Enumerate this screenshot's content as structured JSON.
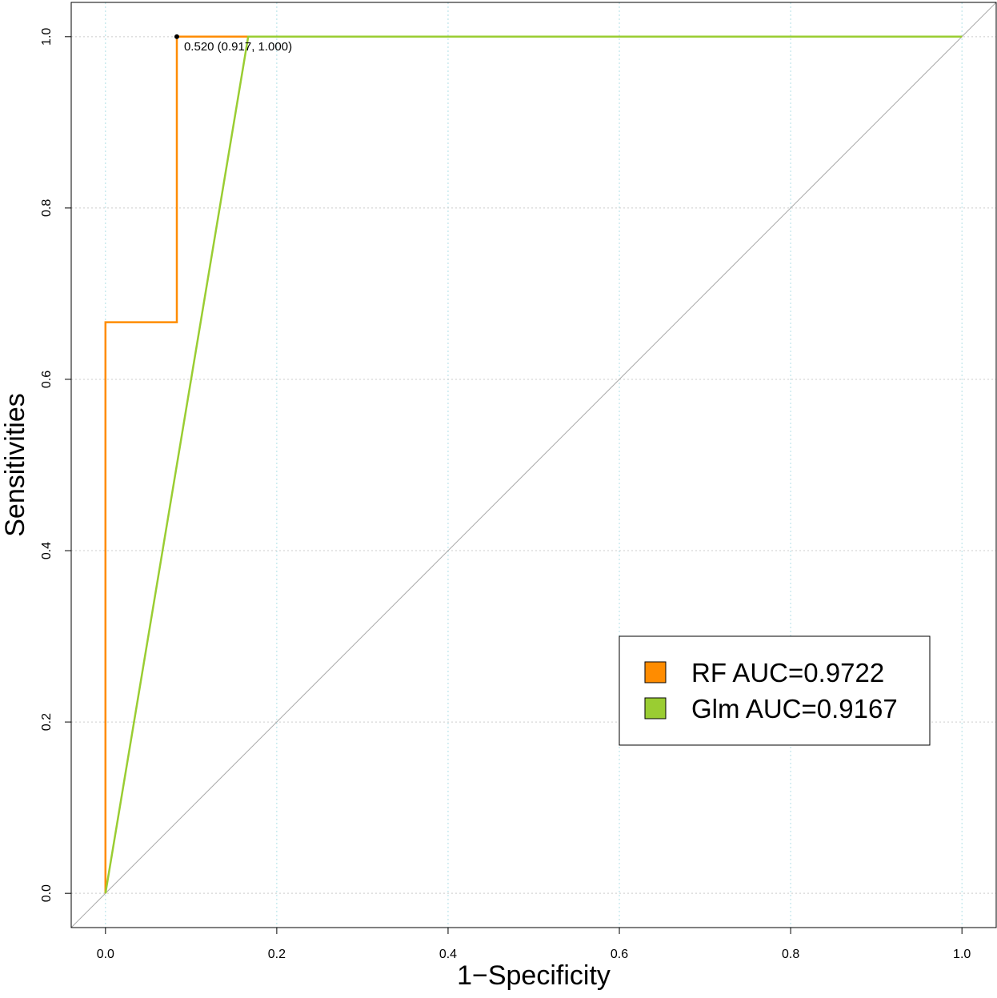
{
  "chart_data": {
    "type": "line",
    "xlabel": "1−Specificity",
    "ylabel": "Sensitivities",
    "xlim": [
      -0.04,
      1.04
    ],
    "ylim": [
      -0.04,
      1.04
    ],
    "x_ticks": [
      0.0,
      0.2,
      0.4,
      0.6,
      0.8,
      1.0
    ],
    "x_tick_labels": [
      "0.0",
      "0.2",
      "0.4",
      "0.6",
      "0.8",
      "1.0"
    ],
    "y_ticks": [
      0.0,
      0.2,
      0.4,
      0.6,
      0.8,
      1.0
    ],
    "y_tick_labels": [
      "0.0",
      "0.2",
      "0.4",
      "0.6",
      "0.8",
      "1.0"
    ],
    "grid": true,
    "legend_position": "right",
    "series": [
      {
        "name": "RF   AUC=0.9722",
        "color": "#ff8c00",
        "x": [
          0.0,
          0.0,
          0.0833,
          0.0833,
          1.0
        ],
        "y": [
          0.0,
          0.6667,
          0.6667,
          1.0,
          1.0
        ]
      },
      {
        "name": "Glm AUC=0.9167",
        "color": "#9acd32",
        "x": [
          0.0,
          0.1667,
          1.0
        ],
        "y": [
          0.0,
          1.0,
          1.0
        ]
      }
    ],
    "reference_line": {
      "x": [
        0.0,
        1.0
      ],
      "y": [
        0.0,
        1.0
      ],
      "color": "#aaaaaa"
    },
    "annotation": {
      "x": 0.0833,
      "y": 1.0,
      "text": "0.520 (0.917, 1.000)"
    }
  }
}
